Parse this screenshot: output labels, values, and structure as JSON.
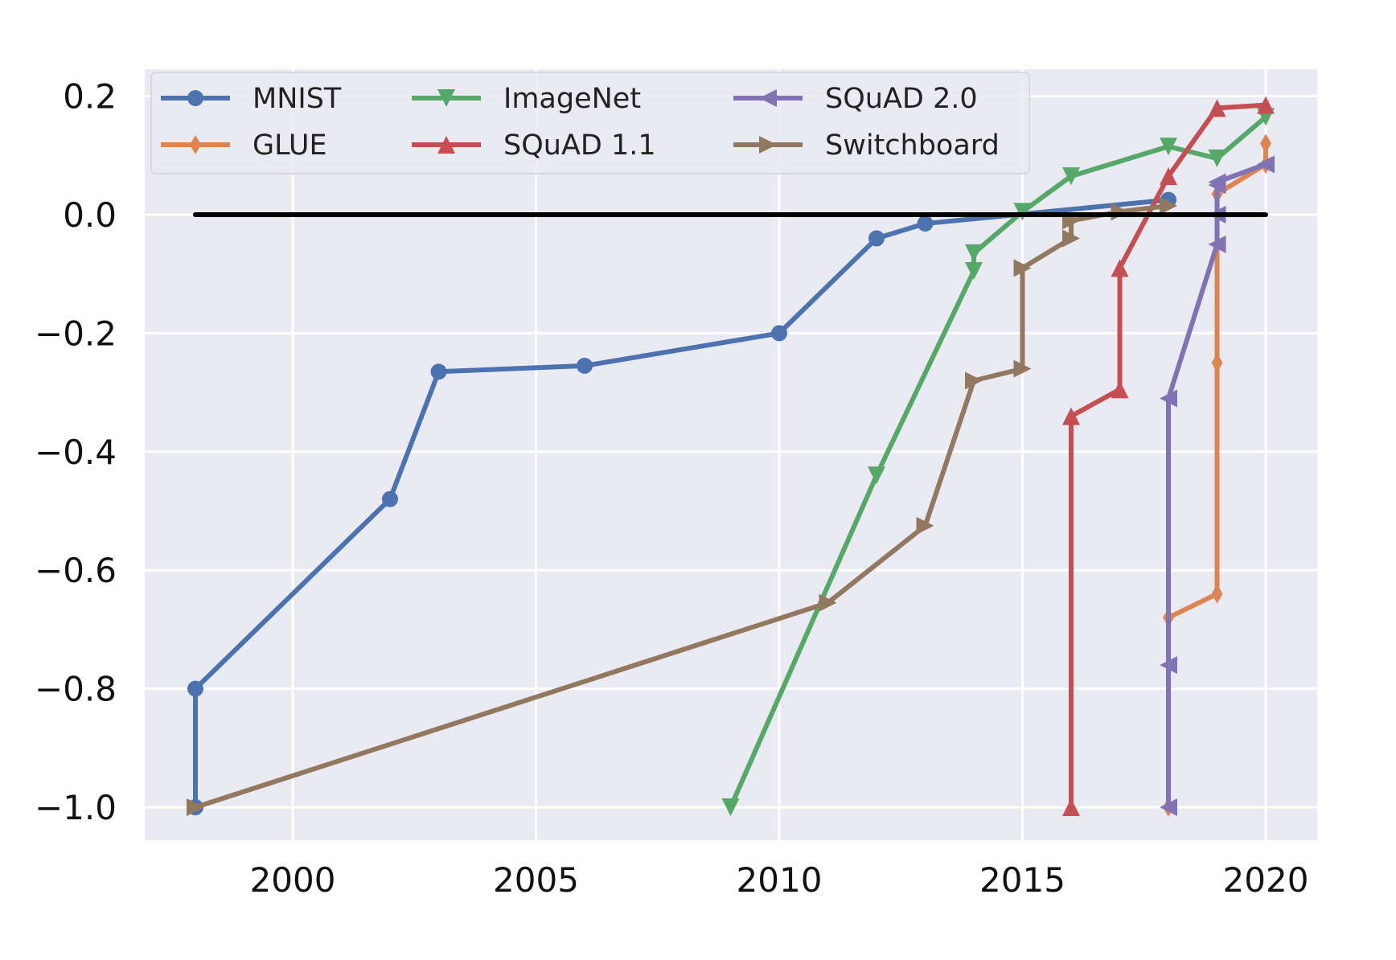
{
  "chart_data": {
    "type": "line",
    "title": "",
    "xlabel": "",
    "ylabel": "",
    "xlim": [
      1995,
      2021
    ],
    "ylim": [
      -1.05,
      0.25
    ],
    "xticks": [
      2000,
      2005,
      2010,
      2015,
      2020
    ],
    "xtick_labels": [
      "2000",
      "2005",
      "2010",
      "2015",
      "2020"
    ],
    "yticks": [
      0.2,
      0.0,
      -0.2,
      -0.4,
      -0.6,
      -0.8,
      -1.0
    ],
    "ytick_labels": [
      "0.2",
      "0.0",
      "−0.2",
      "−0.4",
      "−0.6",
      "−0.8",
      "−1.0"
    ],
    "grid": true,
    "background": "#EAEAF2",
    "legend_placement": "top-left",
    "reference_line": {
      "y": 0.0,
      "x": [
        1998,
        2020
      ],
      "color": "#000000"
    },
    "series": [
      {
        "name": "MNIST",
        "color": "#4C72B0",
        "marker": "circle",
        "x": [
          1998,
          1998,
          2002,
          2003,
          2006,
          2010,
          2012,
          2013,
          2018
        ],
        "y": [
          -1.0,
          -0.8,
          -0.48,
          -0.265,
          -0.255,
          -0.2,
          -0.04,
          -0.015,
          0.025
        ]
      },
      {
        "name": "GLUE",
        "color": "#DD8452",
        "marker": "thin-diamond",
        "x": [
          2018,
          2018,
          2019,
          2019,
          2019,
          2020,
          2020
        ],
        "y": [
          -1.0,
          -0.68,
          -0.64,
          -0.25,
          0.035,
          0.085,
          0.12
        ]
      },
      {
        "name": "ImageNet",
        "color": "#55A868",
        "marker": "triangle-down",
        "x": [
          2009,
          2012,
          2014,
          2014,
          2015,
          2016,
          2018,
          2019,
          2020
        ],
        "y": [
          -1.0,
          -0.44,
          -0.095,
          -0.065,
          0.005,
          0.065,
          0.115,
          0.095,
          0.165
        ]
      },
      {
        "name": "SQuAD 1.1",
        "color": "#C44E52",
        "marker": "triangle-up",
        "x": [
          2016,
          2016,
          2017,
          2017,
          2018,
          2019,
          2020
        ],
        "y": [
          -1.0,
          -0.34,
          -0.295,
          -0.09,
          0.065,
          0.18,
          0.185
        ]
      },
      {
        "name": "SQuAD 2.0",
        "color": "#8172B3",
        "marker": "triangle-left",
        "x": [
          2018,
          2018,
          2018,
          2019,
          2019,
          2019,
          2019,
          2020
        ],
        "y": [
          -1.0,
          -0.76,
          -0.31,
          -0.05,
          0.0,
          0.05,
          0.055,
          0.085
        ]
      },
      {
        "name": "Switchboard",
        "color": "#937860",
        "marker": "triangle-right",
        "x": [
          1998,
          2011,
          2013,
          2014,
          2015,
          2015,
          2016,
          2016,
          2017,
          2018
        ],
        "y": [
          -1.0,
          -0.655,
          -0.525,
          -0.28,
          -0.26,
          -0.09,
          -0.04,
          -0.01,
          0.005,
          0.015
        ]
      }
    ]
  }
}
